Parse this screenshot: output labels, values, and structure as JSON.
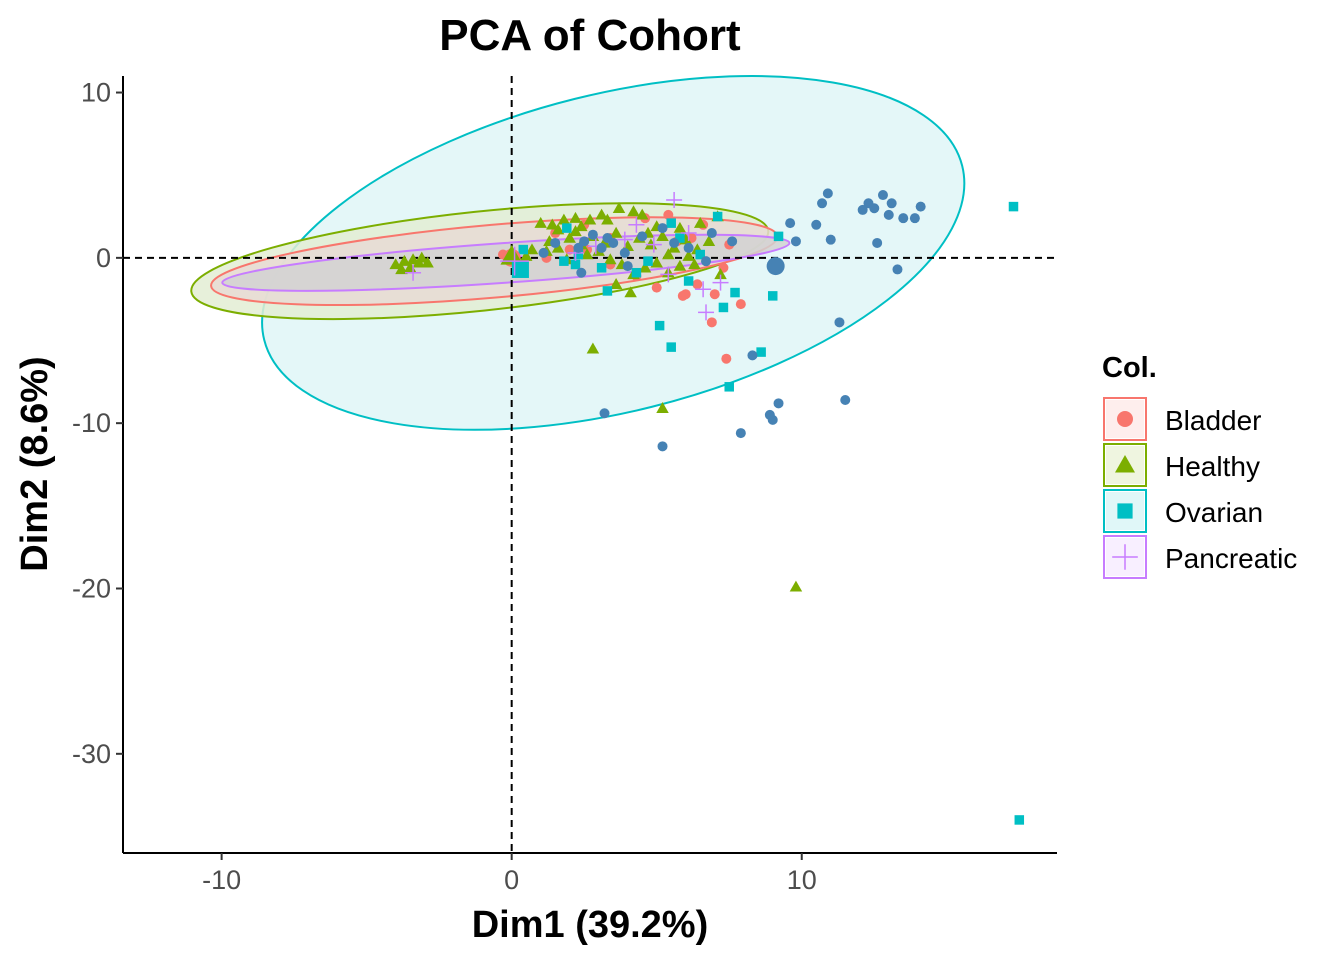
{
  "chart_data": {
    "type": "scatter",
    "title": "PCA of Cohort",
    "xlabel": "Dim1 (39.2%)",
    "ylabel": "Dim2 (8.6%)",
    "xlim": [
      -13.4,
      18.8
    ],
    "ylim": [
      -36,
      11
    ],
    "x_ticks": [
      -10,
      0,
      10
    ],
    "y_ticks": [
      10,
      0,
      -10,
      -20,
      -30
    ],
    "x_tick_labels": [
      "-10",
      "0",
      "10"
    ],
    "y_tick_labels": [
      "10",
      "0",
      "-10",
      "-20",
      "-30"
    ],
    "reference_lines": {
      "x": 0,
      "y": 0,
      "style": "dashed"
    },
    "grid": false,
    "legend": {
      "title": "Col.",
      "position": "right",
      "entries": [
        {
          "label": "Bladder",
          "color": "#F8766D",
          "shape": "circle"
        },
        {
          "label": "Healthy",
          "color": "#7CAE00",
          "shape": "triangle"
        },
        {
          "label": "Ovarian",
          "color": "#00BFC4",
          "shape": "square"
        },
        {
          "label": "Pancreatic",
          "color": "#C77CFF",
          "shape": "cross"
        }
      ]
    },
    "ellipses": [
      {
        "group": "Ovarian",
        "cx": 3.5,
        "cy": 0.3,
        "rx": 12.4,
        "ry": 9.6,
        "angle": -14,
        "color": "#00BFC4",
        "fill": "#DFF6F7"
      },
      {
        "group": "Healthy",
        "cx": -1.1,
        "cy": -0.2,
        "rx": 10.0,
        "ry": 3.0,
        "angle": -6,
        "color": "#7CAE00",
        "fill": "#E3EDD4"
      },
      {
        "group": "Bladder",
        "cx": -0.6,
        "cy": -0.2,
        "rx": 9.8,
        "ry": 2.2,
        "angle": -5,
        "color": "#F8766D",
        "fill": "#E7DBD4"
      },
      {
        "group": "Pancreatic",
        "cx": -0.2,
        "cy": -0.3,
        "rx": 9.8,
        "ry": 1.2,
        "angle": -4,
        "color": "#C77CFF",
        "fill": "#D2D2D2"
      }
    ],
    "centroids": [
      {
        "group": "Bladder",
        "x": 0.0,
        "y": 0.0
      },
      {
        "group": "Healthy",
        "x": 0.0,
        "y": 0.1
      },
      {
        "group": "Ovarian",
        "x": 0.3,
        "y": -0.7
      },
      {
        "group": "Pancreatic",
        "x": 0.1,
        "y": -0.2
      },
      {
        "group": "unlabeled",
        "x": 9.1,
        "y": -0.5
      }
    ],
    "series": [
      {
        "name": "Bladder",
        "color": "#F8766D",
        "shape": "circle",
        "points": [
          [
            -0.3,
            0.2
          ],
          [
            1.5,
            1.5
          ],
          [
            2.5,
            2.0
          ],
          [
            3.4,
            1.2
          ],
          [
            4.6,
            2.4
          ],
          [
            5.4,
            2.6
          ],
          [
            5.7,
            1.0
          ],
          [
            6.2,
            1.2
          ],
          [
            6.6,
            2.0
          ],
          [
            7.5,
            0.8
          ],
          [
            7.3,
            -0.6
          ],
          [
            6.4,
            -1.6
          ],
          [
            5.9,
            -2.3
          ],
          [
            5.0,
            -1.8
          ],
          [
            4.3,
            -1.1
          ],
          [
            3.4,
            -0.4
          ],
          [
            2.6,
            0.5
          ],
          [
            7.0,
            -2.2
          ],
          [
            6.0,
            -2.2
          ],
          [
            6.9,
            -3.9
          ],
          [
            7.9,
            -2.8
          ],
          [
            7.4,
            -6.1
          ],
          [
            1.2,
            0.0
          ],
          [
            2.0,
            0.5
          ]
        ]
      },
      {
        "name": "Healthy",
        "color": "#7CAE00",
        "shape": "triangle",
        "points": [
          [
            -4.0,
            -0.4
          ],
          [
            -3.7,
            -0.2
          ],
          [
            -3.5,
            -0.6
          ],
          [
            -3.2,
            -0.3
          ],
          [
            -3.8,
            -0.7
          ],
          [
            -3.1,
            0.0
          ],
          [
            -2.9,
            -0.3
          ],
          [
            -3.4,
            -0.1
          ],
          [
            0.7,
            0.5
          ],
          [
            1.0,
            2.1
          ],
          [
            1.4,
            2.0
          ],
          [
            1.8,
            2.3
          ],
          [
            2.2,
            2.4
          ],
          [
            2.7,
            2.3
          ],
          [
            3.1,
            2.6
          ],
          [
            3.7,
            3.0
          ],
          [
            3.3,
            2.3
          ],
          [
            4.2,
            2.8
          ],
          [
            4.5,
            2.6
          ],
          [
            1.3,
            1.0
          ],
          [
            1.6,
            0.6
          ],
          [
            2.0,
            1.2
          ],
          [
            2.4,
            0.8
          ],
          [
            2.8,
            1.3
          ],
          [
            3.2,
            0.9
          ],
          [
            3.6,
            1.5
          ],
          [
            4.0,
            0.7
          ],
          [
            4.4,
            1.2
          ],
          [
            4.8,
            0.8
          ],
          [
            5.2,
            1.3
          ],
          [
            5.6,
            0.6
          ],
          [
            6.0,
            1.1
          ],
          [
            6.4,
            0.5
          ],
          [
            6.8,
            1.0
          ],
          [
            7.1,
            2.5
          ],
          [
            6.5,
            2.1
          ],
          [
            5.8,
            1.8
          ],
          [
            5.0,
            1.9
          ],
          [
            3.4,
            -0.1
          ],
          [
            3.8,
            -0.4
          ],
          [
            4.2,
            -1.0
          ],
          [
            4.6,
            -0.6
          ],
          [
            5.0,
            -0.3
          ],
          [
            5.4,
            -0.9
          ],
          [
            5.8,
            -0.5
          ],
          [
            6.3,
            -0.4
          ],
          [
            7.2,
            -1.0
          ],
          [
            2.6,
            0.2
          ],
          [
            1.9,
            -0.1
          ],
          [
            1.2,
            0.4
          ],
          [
            0.5,
            0.1
          ],
          [
            4.1,
            -2.1
          ],
          [
            3.6,
            -1.6
          ],
          [
            2.8,
            -5.5
          ],
          [
            5.2,
            -9.1
          ],
          [
            9.8,
            -19.9
          ],
          [
            0.2,
            -0.1
          ],
          [
            2.2,
            1.6
          ],
          [
            4.7,
            1.5
          ],
          [
            5.4,
            0.2
          ],
          [
            6.1,
            0.1
          ],
          [
            3.0,
            0.4
          ],
          [
            1.6,
            1.7
          ],
          [
            2.4,
            1.9
          ]
        ]
      },
      {
        "name": "Ovarian",
        "color": "#00BFC4",
        "shape": "square",
        "points": [
          [
            0.4,
            -0.7
          ],
          [
            0.4,
            0.5
          ],
          [
            1.9,
            1.8
          ],
          [
            2.2,
            -0.4
          ],
          [
            3.3,
            -2.0
          ],
          [
            4.3,
            -0.9
          ],
          [
            5.5,
            2.1
          ],
          [
            5.8,
            1.2
          ],
          [
            6.1,
            -1.4
          ],
          [
            7.1,
            2.5
          ],
          [
            7.7,
            -2.1
          ],
          [
            8.6,
            -5.7
          ],
          [
            9.0,
            -2.3
          ],
          [
            9.2,
            1.3
          ],
          [
            5.1,
            -4.1
          ],
          [
            5.5,
            -5.4
          ],
          [
            7.3,
            -3.0
          ],
          [
            7.5,
            -7.8
          ],
          [
            2.3,
            0.2
          ],
          [
            3.1,
            -0.6
          ],
          [
            4.7,
            -0.2
          ],
          [
            17.3,
            3.1
          ],
          [
            17.5,
            -34.0
          ],
          [
            1.8,
            -0.2
          ],
          [
            6.5,
            0.2
          ]
        ]
      },
      {
        "name": "Pancreatic",
        "color": "#C77CFF",
        "shape": "cross",
        "points": [
          [
            -3.4,
            -0.9
          ],
          [
            0.1,
            0.1
          ],
          [
            2.2,
            0.3
          ],
          [
            3.9,
            1.1
          ],
          [
            4.3,
            2.0
          ],
          [
            4.9,
            0.8
          ],
          [
            5.6,
            3.5
          ],
          [
            6.1,
            1.5
          ],
          [
            6.6,
            -1.9
          ],
          [
            6.7,
            -3.3
          ],
          [
            7.2,
            -1.5
          ],
          [
            5.4,
            -1.0
          ],
          [
            2.9,
            0.7
          ]
        ]
      },
      {
        "name": "",
        "color": "#4682B4",
        "shape": "circle",
        "points": [
          [
            1.1,
            0.3
          ],
          [
            1.5,
            0.9
          ],
          [
            2.3,
            0.6
          ],
          [
            2.5,
            1.0
          ],
          [
            2.8,
            1.4
          ],
          [
            3.1,
            0.6
          ],
          [
            3.3,
            1.2
          ],
          [
            3.5,
            0.9
          ],
          [
            3.9,
            0.3
          ],
          [
            4.5,
            1.3
          ],
          [
            5.2,
            1.8
          ],
          [
            5.6,
            0.9
          ],
          [
            6.1,
            0.6
          ],
          [
            6.9,
            1.5
          ],
          [
            7.6,
            1.0
          ],
          [
            9.1,
            -0.5
          ],
          [
            9.6,
            2.1
          ],
          [
            9.8,
            1.0
          ],
          [
            10.5,
            2.0
          ],
          [
            10.7,
            3.3
          ],
          [
            10.9,
            3.9
          ],
          [
            11.0,
            1.1
          ],
          [
            12.1,
            2.9
          ],
          [
            12.3,
            3.3
          ],
          [
            12.5,
            3.0
          ],
          [
            12.6,
            0.9
          ],
          [
            12.8,
            3.8
          ],
          [
            13.0,
            2.6
          ],
          [
            13.1,
            3.3
          ],
          [
            13.3,
            -0.7
          ],
          [
            13.5,
            2.4
          ],
          [
            13.9,
            2.4
          ],
          [
            14.1,
            3.1
          ],
          [
            11.3,
            -3.9
          ],
          [
            11.5,
            -8.6
          ],
          [
            8.3,
            -5.9
          ],
          [
            8.9,
            -9.5
          ],
          [
            9.0,
            -9.8
          ],
          [
            9.2,
            -8.8
          ],
          [
            7.9,
            -10.6
          ],
          [
            5.2,
            -11.4
          ],
          [
            3.2,
            -9.4
          ],
          [
            2.4,
            -0.9
          ],
          [
            4.0,
            -0.5
          ],
          [
            6.7,
            -0.2
          ]
        ]
      }
    ]
  }
}
